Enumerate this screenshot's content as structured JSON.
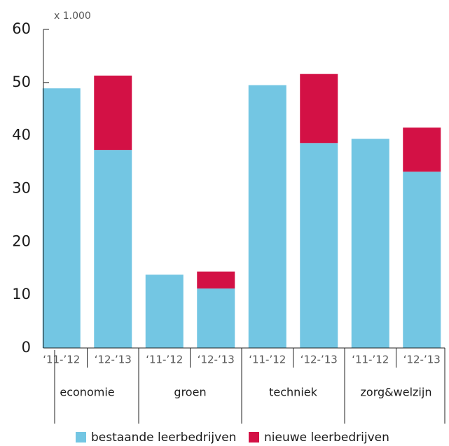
{
  "chart_data": {
    "type": "bar",
    "stacked": true,
    "unit_label": "x 1.000",
    "categories": [
      "‘11-’12",
      "‘12-’13",
      "‘11-’12",
      "‘12-’13",
      "‘11-’12",
      "‘12-’13",
      "‘11-’12",
      "‘12-’13"
    ],
    "groups": [
      "economie",
      "groen",
      "techniek",
      "zorg&welzijn"
    ],
    "series": [
      {
        "name": "bestaande leerbedrijven",
        "color": "#73c6e3",
        "values": [
          48.9,
          37.3,
          13.8,
          11.2,
          49.5,
          38.6,
          39.4,
          33.2
        ]
      },
      {
        "name": "nieuwe leerbedrijven",
        "color": "#d31145",
        "values": [
          0,
          14,
          0,
          3.2,
          0,
          13,
          0,
          8.3
        ]
      }
    ],
    "ylim": [
      0,
      60
    ],
    "yticks": [
      0,
      10,
      20,
      30,
      40,
      50,
      60
    ]
  }
}
